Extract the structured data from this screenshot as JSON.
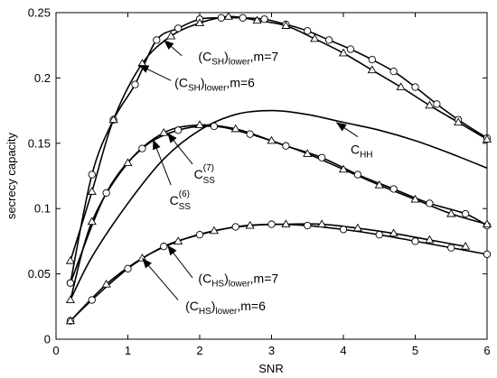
{
  "chart_data": {
    "type": "line",
    "xlabel": "SNR",
    "ylabel": "secrecy capacity",
    "xlim": [
      0,
      6
    ],
    "ylim": [
      0,
      0.25
    ],
    "xticks": [
      "0",
      "1",
      "2",
      "3",
      "4",
      "5",
      "6"
    ],
    "yticks": [
      "0",
      "0.05",
      "0.1",
      "0.15",
      "0.2",
      "0.25"
    ],
    "grid": false,
    "series": [
      {
        "id": "sh7",
        "marker": "circle",
        "x": [
          0.2,
          0.5,
          0.8,
          1.1,
          1.4,
          1.7,
          2.0,
          2.3,
          2.6,
          2.9,
          3.2,
          3.5,
          3.8,
          4.1,
          4.4,
          4.7,
          5.0,
          5.3,
          5.6,
          6.0
        ],
        "y": [
          0.043,
          0.126,
          0.168,
          0.195,
          0.229,
          0.238,
          0.245,
          0.246,
          0.246,
          0.245,
          0.241,
          0.236,
          0.229,
          0.222,
          0.214,
          0.205,
          0.193,
          0.18,
          0.168,
          0.154
        ]
      },
      {
        "id": "sh6",
        "marker": "triangle",
        "x": [
          0.2,
          0.5,
          0.8,
          1.2,
          1.6,
          2.0,
          2.4,
          2.8,
          3.2,
          3.6,
          4.0,
          4.4,
          4.8,
          5.2,
          5.6,
          6.0
        ],
        "y": [
          0.06,
          0.113,
          0.168,
          0.211,
          0.232,
          0.242,
          0.247,
          0.244,
          0.24,
          0.23,
          0.219,
          0.206,
          0.193,
          0.179,
          0.166,
          0.153
        ]
      },
      {
        "id": "ss7",
        "marker": "circle",
        "x": [
          0.2,
          0.7,
          1.2,
          1.7,
          2.2,
          2.7,
          3.2,
          3.7,
          4.2,
          4.7,
          5.2,
          5.7,
          6.0
        ],
        "y": [
          0.043,
          0.112,
          0.146,
          0.16,
          0.163,
          0.157,
          0.148,
          0.139,
          0.126,
          0.115,
          0.104,
          0.096,
          0.087
        ]
      },
      {
        "id": "ss6",
        "marker": "triangle",
        "x": [
          0.2,
          0.5,
          1.0,
          1.5,
          2.0,
          2.5,
          3.0,
          3.5,
          4.0,
          4.5,
          5.0,
          5.5,
          6.0
        ],
        "y": [
          0.03,
          0.09,
          0.135,
          0.158,
          0.164,
          0.161,
          0.152,
          0.142,
          0.13,
          0.118,
          0.107,
          0.096,
          0.088
        ]
      },
      {
        "id": "hh",
        "marker": "none",
        "x": [
          0.2,
          0.5,
          1.0,
          1.5,
          2.0,
          2.5,
          3.0,
          3.5,
          4.0,
          4.5,
          5.0,
          5.5,
          6.0
        ],
        "y": [
          0.03,
          0.063,
          0.104,
          0.138,
          0.16,
          0.172,
          0.175,
          0.172,
          0.166,
          0.16,
          0.152,
          0.142,
          0.131
        ]
      },
      {
        "id": "hs7",
        "marker": "circle",
        "x": [
          0.2,
          0.5,
          1.0,
          1.5,
          2.0,
          2.5,
          3.0,
          3.5,
          4.0,
          4.5,
          5.0,
          5.5,
          6.0
        ],
        "y": [
          0.014,
          0.03,
          0.054,
          0.071,
          0.08,
          0.086,
          0.088,
          0.087,
          0.084,
          0.08,
          0.075,
          0.07,
          0.065
        ]
      },
      {
        "id": "hs6",
        "marker": "triangle",
        "x": [
          0.2,
          0.7,
          1.2,
          1.7,
          2.2,
          2.7,
          3.2,
          3.7,
          4.2,
          4.7,
          5.2,
          5.7
        ],
        "y": [
          0.014,
          0.042,
          0.062,
          0.075,
          0.083,
          0.087,
          0.088,
          0.088,
          0.085,
          0.081,
          0.076,
          0.071
        ]
      }
    ],
    "annotations": [
      {
        "id": "ann_sh7",
        "base": "(C",
        "sub": "SH",
        "tail": ")",
        "sub2": "lower",
        "rest": ",m=7",
        "points_to": [
          1.5,
          0.229
        ],
        "label_at": [
          1.75,
          0.217
        ],
        "tx": [
          1.98,
          0.213
        ]
      },
      {
        "id": "ann_sh6",
        "base": "(C",
        "sub": "SH",
        "tail": ")",
        "sub2": "lower",
        "rest": ",m=6",
        "points_to": [
          1.15,
          0.21
        ],
        "label_at": [
          1.6,
          0.198
        ],
        "tx": [
          1.65,
          0.193
        ]
      },
      {
        "id": "ann_hh",
        "base": "C",
        "sub": "HH",
        "points_to": [
          3.9,
          0.166
        ],
        "label_at": [
          4.2,
          0.155
        ],
        "tx": [
          4.1,
          0.142
        ]
      },
      {
        "id": "ann_ss7",
        "base": "C",
        "sub": "SS",
        "sup": "(7)",
        "points_to": [
          1.55,
          0.158
        ],
        "label_at": [
          1.9,
          0.134
        ],
        "tx": [
          1.92,
          0.123
        ]
      },
      {
        "id": "ann_ss6",
        "base": "C",
        "sub": "SS",
        "sup": "(6)",
        "points_to": [
          1.35,
          0.153
        ],
        "label_at": [
          1.6,
          0.118
        ],
        "tx": [
          1.58,
          0.103
        ]
      },
      {
        "id": "ann_hs7",
        "base": "(C",
        "sub": "HS",
        "tail": ")",
        "sub2": "lower",
        "rest": ",m=7",
        "points_to": [
          1.55,
          0.072
        ],
        "label_at": [
          1.9,
          0.047
        ],
        "tx": [
          1.98,
          0.043
        ]
      },
      {
        "id": "ann_hs6",
        "base": "(C",
        "sub": "HS",
        "tail": ")",
        "sub2": "lower",
        "rest": ",m=6",
        "points_to": [
          1.2,
          0.062
        ],
        "label_at": [
          1.7,
          0.03
        ],
        "tx": [
          1.8,
          0.022
        ]
      }
    ]
  }
}
